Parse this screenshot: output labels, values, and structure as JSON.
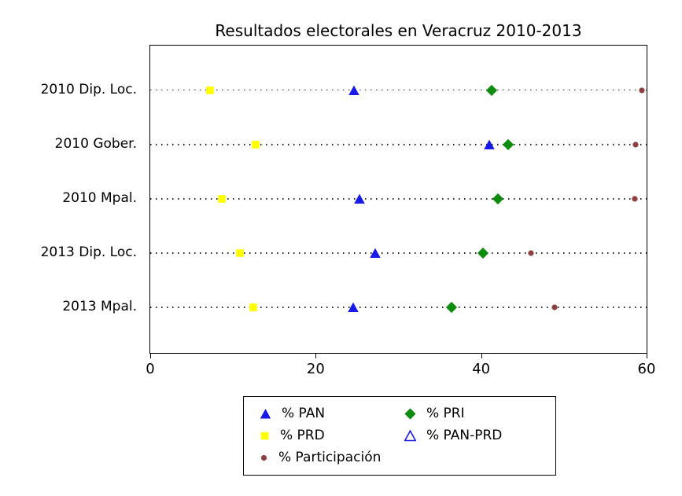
{
  "chart_data": {
    "type": "scatter",
    "variant": "horizontal-dot-plot",
    "title": "Resultados electorales en Veracruz 2010-2013",
    "categories": [
      "2010 Dip. Loc.",
      "2010 Gober.",
      "2010 Mpal.",
      "2013 Dip. Loc.",
      "2013 Mpal."
    ],
    "x_ticks": [
      0,
      20,
      40,
      60
    ],
    "xlim": [
      0,
      60
    ],
    "grid": "dotted horizontal line per category",
    "legend_position": "bottom-center boxed, 2 columns",
    "series": [
      {
        "name": "% PAN",
        "marker": "triangle",
        "fill": "filled",
        "color": "#1a1ae8",
        "values": [
          24.6,
          41.0,
          25.3,
          27.2,
          24.5
        ]
      },
      {
        "name": "% PRI",
        "marker": "diamond",
        "fill": "filled",
        "color": "#0e8c0e",
        "values": [
          41.3,
          43.3,
          42.0,
          40.2,
          36.4
        ]
      },
      {
        "name": "% PRD",
        "marker": "square",
        "fill": "filled",
        "color": "#ffff00",
        "values": [
          7.2,
          12.7,
          8.7,
          10.8,
          12.5
        ]
      },
      {
        "name": "% PAN-PRD",
        "marker": "triangle",
        "fill": "open",
        "color": "#1a1ae8",
        "values": [
          null,
          null,
          null,
          null,
          null
        ]
      },
      {
        "name": "% Participación",
        "marker": "circle",
        "fill": "filled",
        "color": "#8f3f3f",
        "values": [
          59.4,
          58.7,
          58.6,
          46.0,
          48.9
        ]
      }
    ]
  }
}
